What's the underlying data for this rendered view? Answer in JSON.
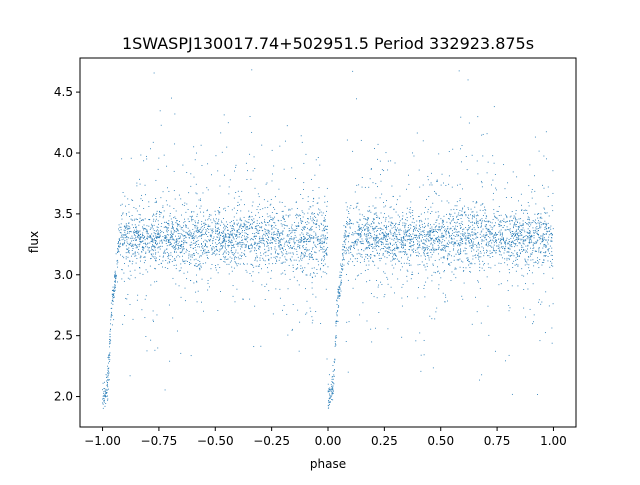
{
  "chart_data": {
    "type": "scatter",
    "title": "1SWASPJ130017.74+502951.5 Period 332923.875s",
    "xlabel": "phase",
    "ylabel": "flux",
    "xlim": [
      -1.1,
      1.1
    ],
    "ylim": [
      1.75,
      4.78
    ],
    "xticks": [
      -1.0,
      -0.75,
      -0.5,
      -0.25,
      0.0,
      0.25,
      0.5,
      0.75,
      1.0
    ],
    "xtick_labels": [
      "−1.00",
      "−0.75",
      "−0.50",
      "−0.25",
      "0.00",
      "0.25",
      "0.50",
      "0.75",
      "1.00"
    ],
    "yticks": [
      2.0,
      2.5,
      3.0,
      3.5,
      4.0,
      4.5
    ],
    "ytick_labels": [
      "2.0",
      "2.5",
      "3.0",
      "3.5",
      "4.0",
      "4.5"
    ],
    "grid": false,
    "legend": "none",
    "marker_color": "#1f77b4",
    "series": [
      {
        "baseline_flux": 3.3,
        "scatter_flux_range": [
          1.9,
          4.7
        ],
        "phase_range": [
          -1.0,
          1.0
        ],
        "eclipse_profile": {
          "phase": [
            0.0,
            0.01,
            0.02,
            0.03,
            0.04,
            0.05,
            0.06,
            0.07,
            0.08
          ],
          "flux": [
            2.0,
            2.0,
            2.05,
            2.3,
            2.75,
            2.85,
            3.0,
            3.25,
            3.3
          ]
        }
      }
    ]
  }
}
